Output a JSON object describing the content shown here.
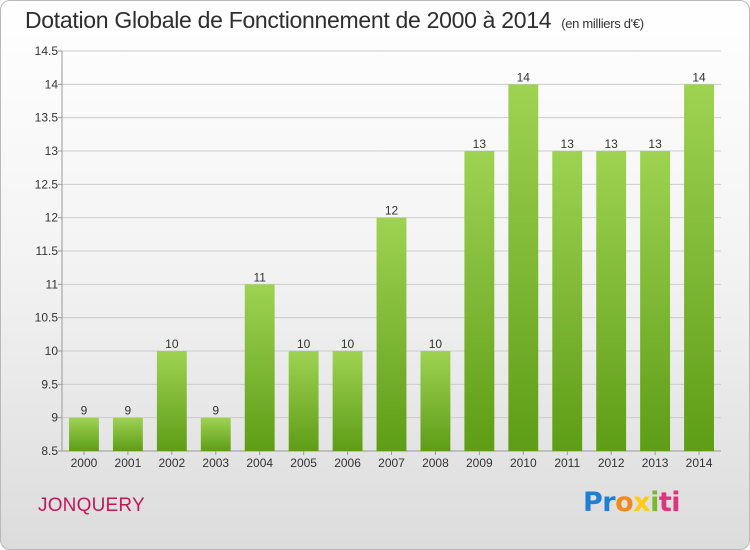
{
  "title": "Dotation Globale de Fonctionnement de 2000 à 2014",
  "subtitle": "(en milliers d'€)",
  "commune": "JONQUERY",
  "logo": {
    "part1": "Pr",
    "part2": "o",
    "part3": "x",
    "part4": "i",
    "part5": "ti"
  },
  "colors": {
    "bar_top": "#9ed352",
    "bar_bottom": "#5e9d16",
    "grid": "#cccccc",
    "axis": "#999999"
  },
  "chart_data": {
    "type": "bar",
    "categories": [
      "2000",
      "2001",
      "2002",
      "2003",
      "2004",
      "2005",
      "2006",
      "2007",
      "2008",
      "2009",
      "2010",
      "2011",
      "2012",
      "2013",
      "2014"
    ],
    "values": [
      9,
      9,
      10,
      9,
      11,
      10,
      10,
      12,
      10,
      13,
      14,
      13,
      13,
      13,
      14
    ],
    "data_labels": [
      "9",
      "9",
      "10",
      "9",
      "11",
      "10",
      "10",
      "12",
      "10",
      "13",
      "14",
      "13",
      "13",
      "13",
      "14"
    ],
    "ylim": [
      8.5,
      14.5
    ],
    "yticks": [
      8.5,
      9,
      9.5,
      10,
      10.5,
      11,
      11.5,
      12,
      12.5,
      13,
      13.5,
      14,
      14.5
    ],
    "ytick_labels": [
      "8.5",
      "9",
      "9.5",
      "10",
      "10.5",
      "11",
      "11.5",
      "12",
      "12.5",
      "13",
      "13.5",
      "14",
      "14.5"
    ],
    "grid": true,
    "xlabel": "",
    "ylabel": ""
  }
}
